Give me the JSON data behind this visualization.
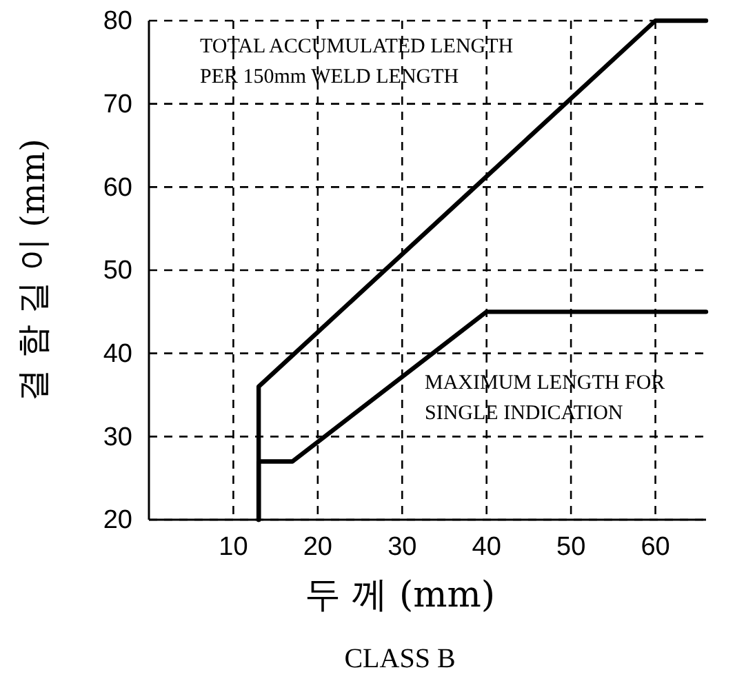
{
  "chart_data": {
    "type": "line",
    "title": "CLASS B",
    "xlabel": "두 께 (mm)",
    "ylabel": "결 함 길 이 (mm)",
    "series": [
      {
        "name": "TOTAL ACCUMULATED LENGTH\nPER 150mm WELD LENGTH",
        "color": "#000000",
        "x": [
          13,
          13,
          60,
          66
        ],
        "values": [
          20,
          36,
          80,
          80
        ]
      },
      {
        "name": "MAXIMUM LENGTH FOR\nSINGLE INDICATION",
        "color": "#000000",
        "x": [
          13,
          13,
          17,
          40,
          66
        ],
        "values": [
          20,
          27,
          27,
          45,
          45
        ]
      }
    ],
    "xlim": [
      0,
      66
    ],
    "xticks": [
      10,
      20,
      30,
      40,
      50,
      60
    ],
    "ylim": [
      20,
      80
    ],
    "yticks": [
      20,
      30,
      40,
      50,
      60,
      70,
      80
    ],
    "grid": true,
    "marker": "none",
    "line_style": "solid"
  }
}
